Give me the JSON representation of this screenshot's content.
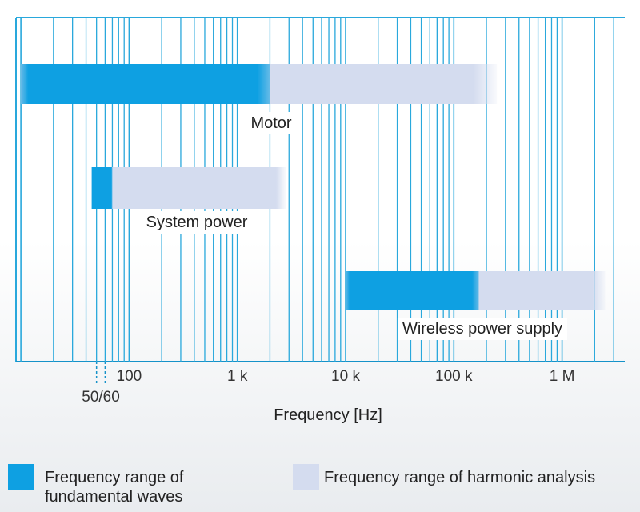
{
  "chart_data": {
    "type": "range-bar",
    "xscale": "log",
    "xlim": [
      10,
      3000000
    ],
    "xlabel": "Frequency [Hz]",
    "x_ticks": [
      {
        "value": 100,
        "label": "100"
      },
      {
        "value": 1000,
        "label": "1 k"
      },
      {
        "value": 10000,
        "label": "10 k"
      },
      {
        "value": 100000,
        "label": "100 k"
      },
      {
        "value": 1000000,
        "label": "1 M"
      }
    ],
    "marker": {
      "values": [
        50,
        60
      ],
      "label": "50/60"
    },
    "bars": [
      {
        "name": "Motor",
        "fundamental": [
          10,
          2000
        ],
        "harmonic": [
          2000,
          250000
        ]
      },
      {
        "name": "System power",
        "fundamental": [
          45,
          70
        ],
        "harmonic": [
          70,
          2800
        ]
      },
      {
        "name": "Wireless power supply",
        "fundamental": [
          10000,
          170000
        ],
        "harmonic": [
          170000,
          2500000
        ]
      }
    ]
  },
  "legend": {
    "fundamental": {
      "label_line1": "Frequency range of",
      "label_line2": "fundamental waves"
    },
    "harmonic": {
      "label": "Frequency range of harmonic analysis"
    }
  },
  "colors": {
    "grid": "#29a8dc",
    "fundamental": "#0ea0e2",
    "harmonic": "#d4dcef",
    "axis": "#1592c9"
  }
}
